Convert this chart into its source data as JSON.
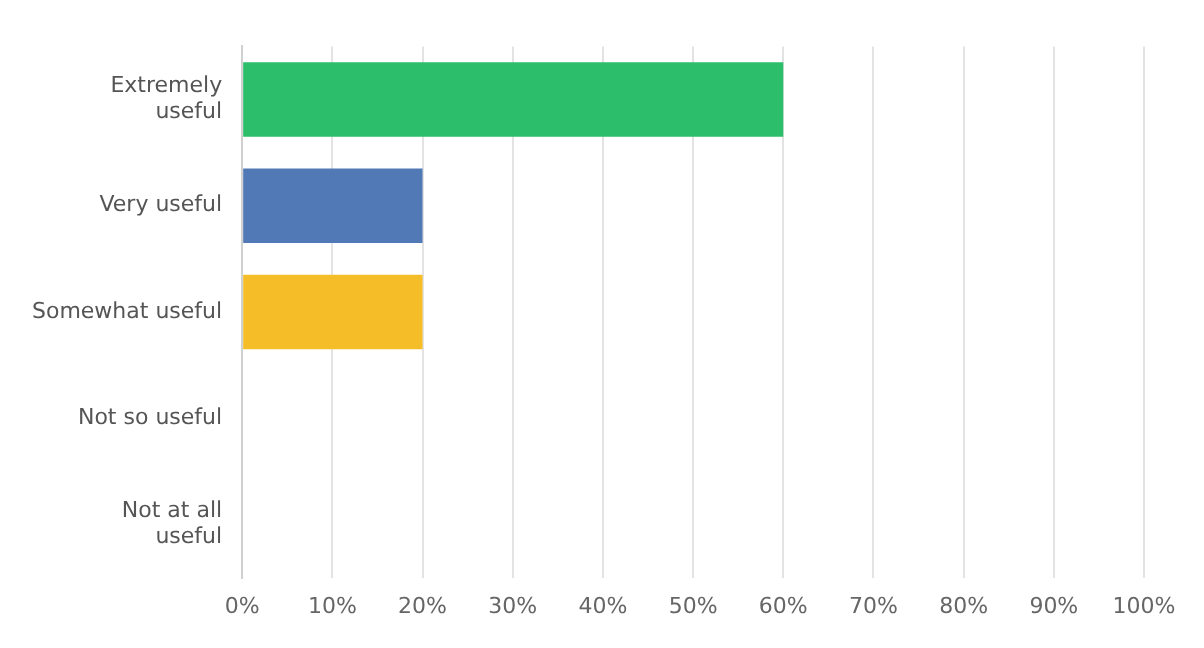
{
  "chart_data": {
    "type": "bar",
    "orientation": "horizontal",
    "categories": [
      "Extremely useful",
      "Very useful",
      "Somewhat useful",
      "Not so useful",
      "Not at all useful"
    ],
    "values": [
      60,
      20,
      20,
      0,
      0
    ],
    "colors": [
      "#2dbe6c",
      "#5079b5",
      "#f5be28",
      "#8e8e8e",
      "#8e8e8e"
    ],
    "xlim": [
      0,
      100
    ],
    "xticks": [
      {
        "value": 0,
        "label": "0%"
      },
      {
        "value": 10,
        "label": "10%"
      },
      {
        "value": 20,
        "label": "20%"
      },
      {
        "value": 30,
        "label": "30%"
      },
      {
        "value": 40,
        "label": "40%"
      },
      {
        "value": 50,
        "label": "50%"
      },
      {
        "value": 60,
        "label": "60%"
      },
      {
        "value": 70,
        "label": "70%"
      },
      {
        "value": 80,
        "label": "80%"
      },
      {
        "value": 90,
        "label": "90%"
      },
      {
        "value": 100,
        "label": "100%"
      }
    ],
    "grid": "x",
    "legend": false
  }
}
